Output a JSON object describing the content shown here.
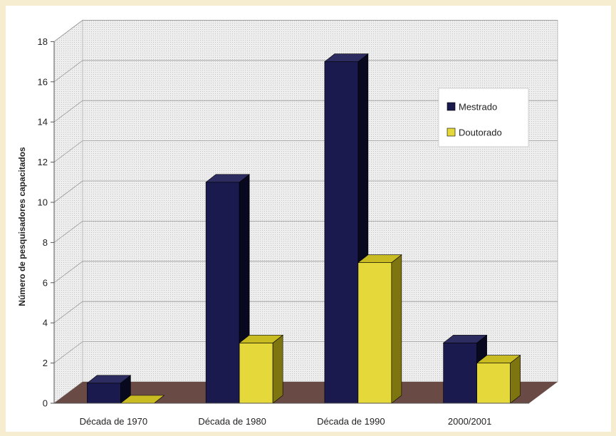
{
  "chart_data": {
    "type": "bar",
    "title": "",
    "xlabel": "",
    "ylabel": "Número de pesquisadores capacitados",
    "categories": [
      "Década de  1970",
      "Década de 1980",
      "Década de 1990",
      "2000/2001"
    ],
    "series": [
      {
        "name": "Mestrado",
        "values": [
          1,
          11,
          17,
          3
        ],
        "color": "#1a1a4e",
        "side_color": "#08081e",
        "top_color": "#2c2c60"
      },
      {
        "name": "Doutorado",
        "values": [
          0,
          3,
          7,
          2
        ],
        "color": "#e4d83a",
        "side_color": "#7e7410",
        "top_color": "#c9bc22"
      }
    ],
    "ylim": [
      0,
      18
    ],
    "yticks": [
      0,
      2,
      4,
      6,
      8,
      10,
      12,
      14,
      16,
      18
    ],
    "ytick_labels": [
      "0",
      "2",
      "4",
      "6",
      "8",
      "10",
      "12",
      "14",
      "16",
      "18"
    ],
    "grid": true,
    "legend_position": "right",
    "floor_color": "#6a4a44",
    "wall_color": "#e7e7e7"
  }
}
